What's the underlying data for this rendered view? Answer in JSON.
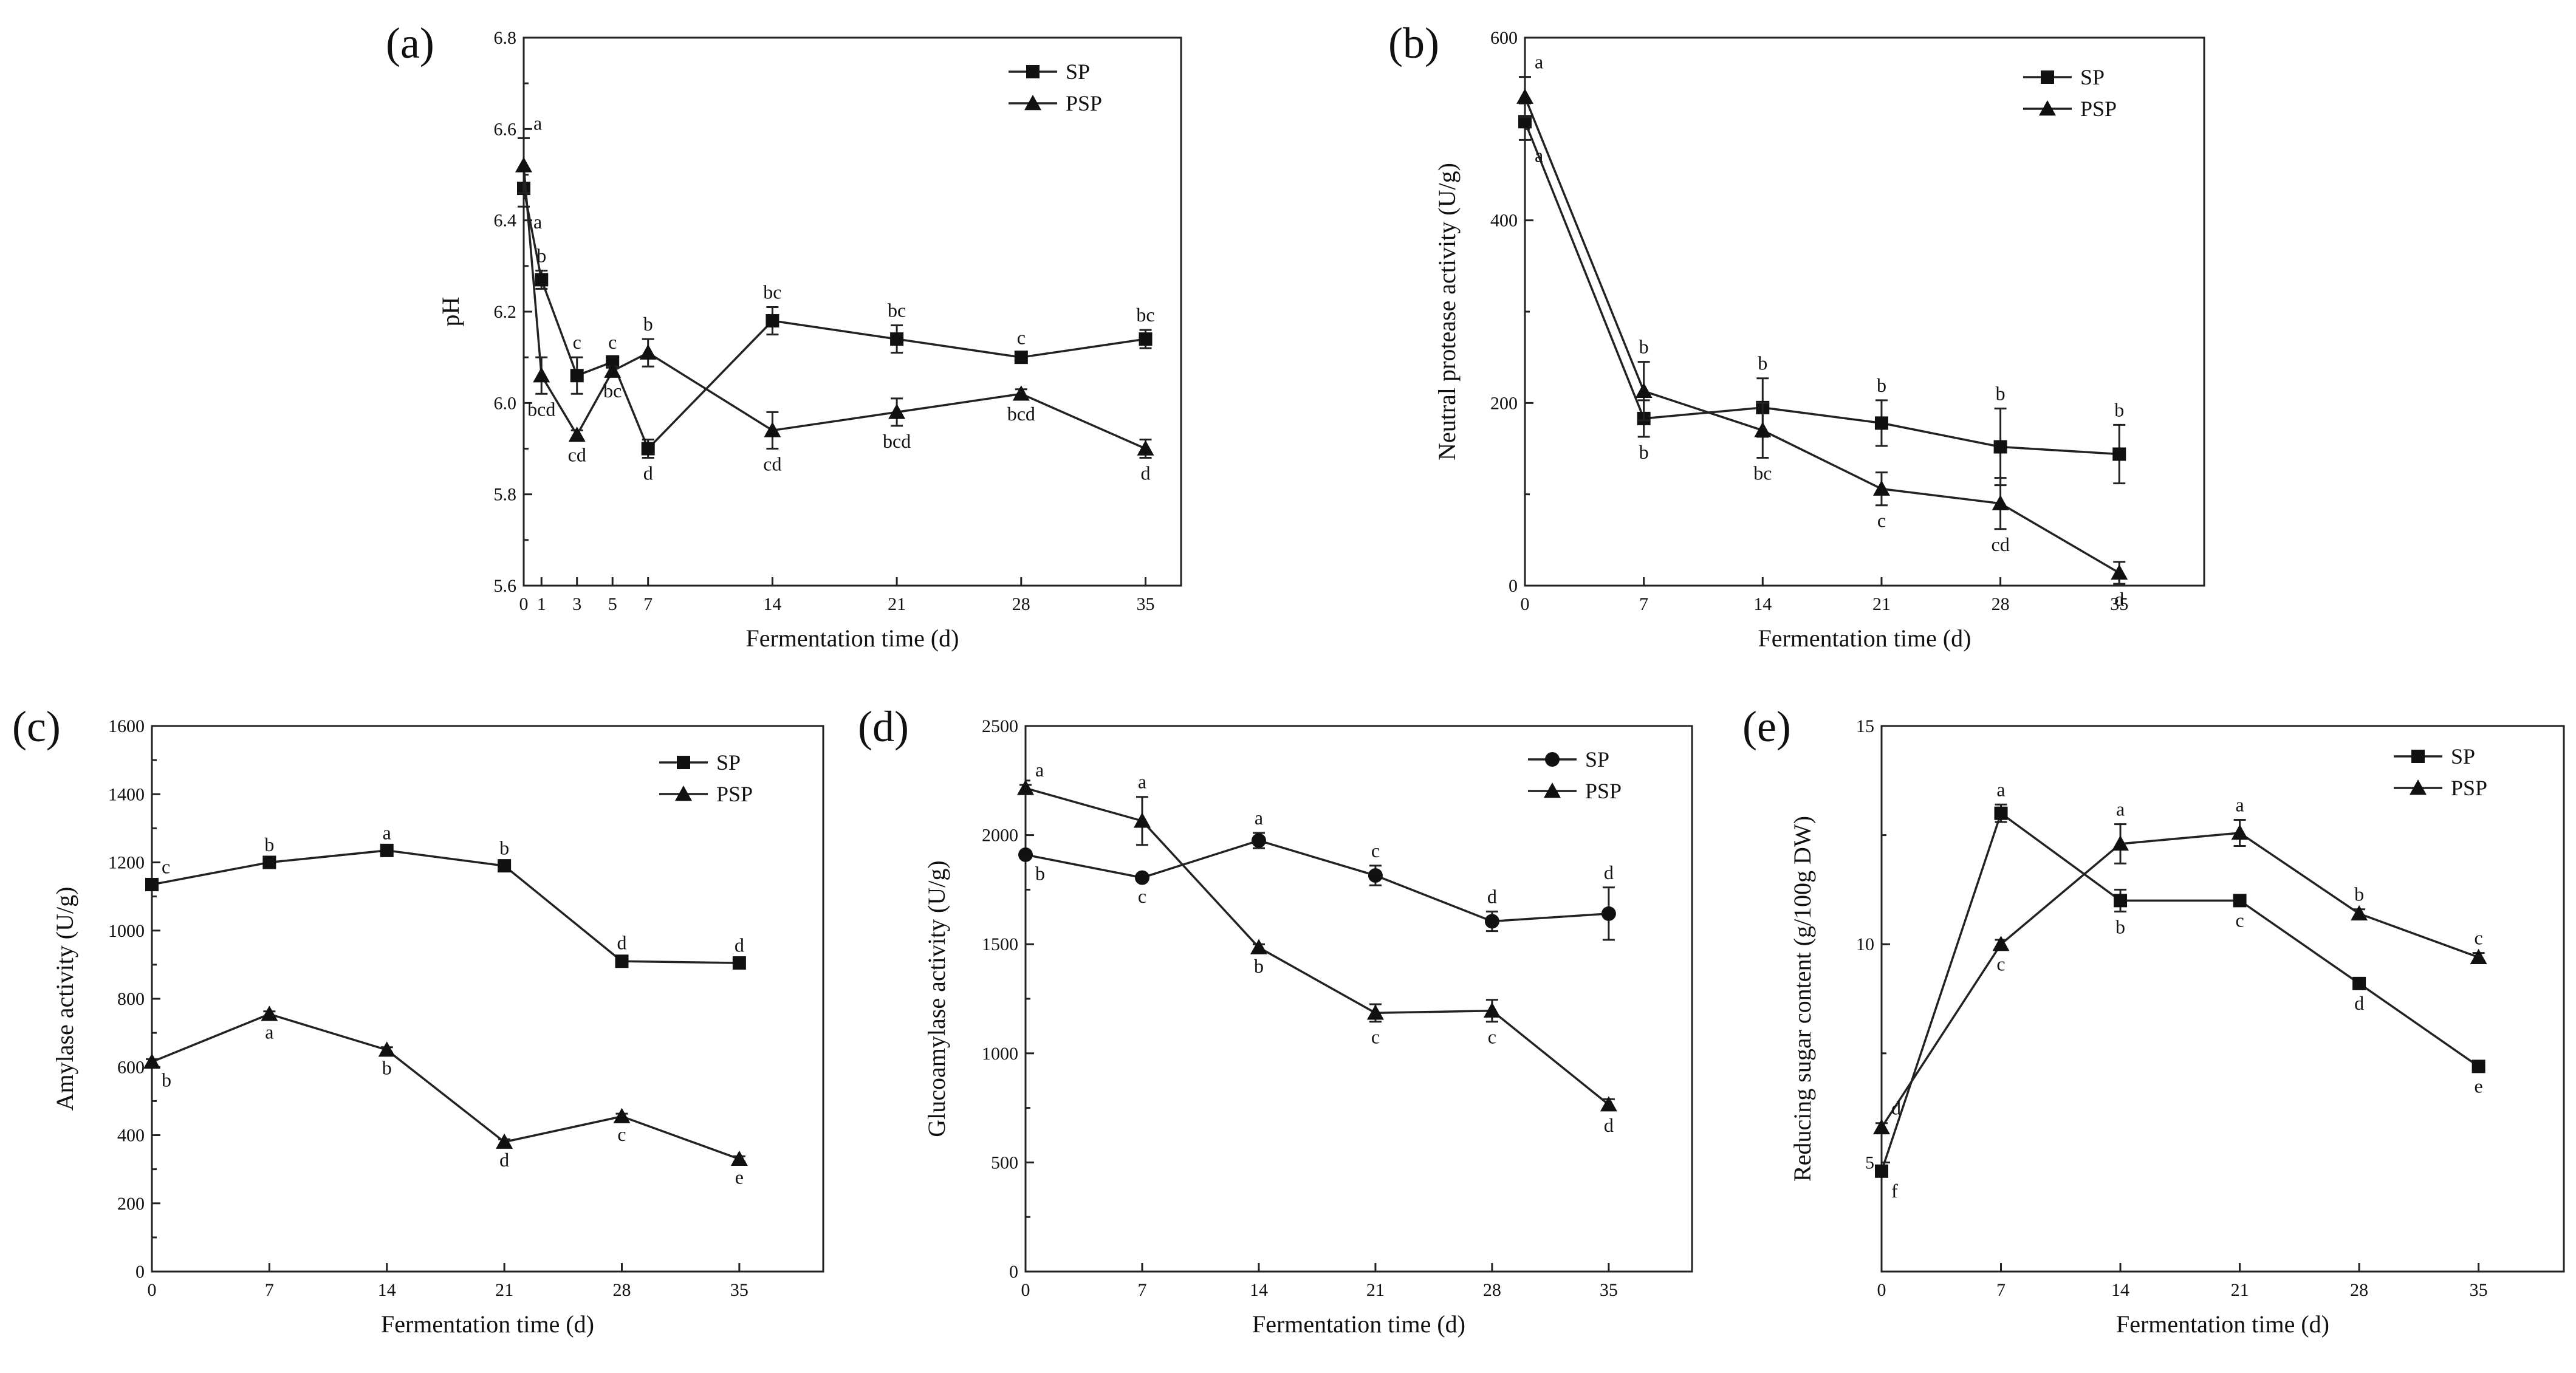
{
  "chart_data": [
    {
      "type": "line",
      "panel": "(a)",
      "xlabel": "Fermentation time (d)",
      "ylabel": "pH",
      "xlim": [
        0,
        37
      ],
      "ylim": [
        5.6,
        6.8
      ],
      "xticks": [
        0,
        1,
        3,
        5,
        7,
        14,
        21,
        28,
        35
      ],
      "yticks": [
        5.6,
        5.8,
        6.0,
        6.2,
        6.4,
        6.6,
        6.8
      ],
      "legend_position": "top-right",
      "series": [
        {
          "name": "SP",
          "marker": "square",
          "x": [
            0,
            1,
            3,
            5,
            7,
            14,
            21,
            28,
            35
          ],
          "values": [
            6.47,
            6.27,
            6.06,
            6.09,
            5.9,
            6.18,
            6.14,
            6.1,
            6.14
          ],
          "errors": [
            0.04,
            0.02,
            0.04,
            0.01,
            0.02,
            0.03,
            0.03,
            0.01,
            0.02
          ],
          "labels": [
            "a",
            "b",
            "c",
            "c",
            "d",
            "bc",
            "bc",
            "c",
            "bc"
          ]
        },
        {
          "name": "PSP",
          "marker": "triangle",
          "x": [
            0,
            1,
            3,
            5,
            7,
            14,
            21,
            28,
            35
          ],
          "values": [
            6.52,
            6.06,
            5.93,
            6.07,
            6.11,
            5.94,
            5.98,
            6.02,
            5.9
          ],
          "errors": [
            0.06,
            0.04,
            0.01,
            0.01,
            0.03,
            0.04,
            0.03,
            0.01,
            0.02
          ],
          "labels": [
            "a",
            "bcd",
            "cd",
            "bc",
            "b",
            "cd",
            "bcd",
            "bcd",
            "d"
          ]
        }
      ]
    },
    {
      "type": "line",
      "panel": "(b)",
      "xlabel": "Fermentation time (d)",
      "ylabel": "Neutral protease activity (U/g)",
      "xlim": [
        0,
        40
      ],
      "ylim": [
        0,
        600
      ],
      "xticks": [
        0,
        7,
        14,
        21,
        28,
        35
      ],
      "yticks": [
        0,
        200,
        400,
        600
      ],
      "legend_position": "top-right",
      "series": [
        {
          "name": "SP",
          "marker": "square",
          "x": [
            0,
            7,
            14,
            21,
            28,
            35
          ],
          "values": [
            508,
            183,
            195,
            178,
            152,
            144
          ],
          "errors": [
            20,
            20,
            32,
            25,
            42,
            32
          ],
          "labels": [
            "a",
            "b",
            "b",
            "b",
            "b",
            "b"
          ]
        },
        {
          "name": "PSP",
          "marker": "triangle",
          "x": [
            0,
            7,
            14,
            21,
            28,
            35
          ],
          "values": [
            535,
            213,
            170,
            106,
            90,
            14
          ],
          "errors": [
            22,
            32,
            30,
            18,
            28,
            12
          ],
          "labels": [
            "a",
            "b",
            "bc",
            "c",
            "cd",
            "d"
          ]
        }
      ]
    },
    {
      "type": "line",
      "panel": "(c)",
      "xlabel": "Fermentation time (d)",
      "ylabel": "Amylase activity (U/g)",
      "xlim": [
        0,
        40
      ],
      "ylim": [
        0,
        1600
      ],
      "xticks": [
        0,
        7,
        14,
        21,
        28,
        35
      ],
      "yticks": [
        0,
        200,
        400,
        600,
        800,
        1000,
        1200,
        1400,
        1600
      ],
      "legend_position": "top-right",
      "series": [
        {
          "name": "SP",
          "marker": "square",
          "x": [
            0,
            7,
            14,
            21,
            28,
            35
          ],
          "values": [
            1135,
            1200,
            1235,
            1190,
            910,
            905
          ],
          "errors": [
            8,
            8,
            8,
            8,
            10,
            8
          ],
          "labels": [
            "c",
            "b",
            "a",
            "b",
            "d",
            "d"
          ]
        },
        {
          "name": "PSP",
          "marker": "triangle",
          "x": [
            0,
            7,
            14,
            21,
            28,
            35
          ],
          "values": [
            615,
            755,
            650,
            380,
            455,
            330
          ],
          "errors": [
            8,
            8,
            8,
            8,
            8,
            8
          ],
          "labels": [
            "b",
            "a",
            "b",
            "d",
            "c",
            "e"
          ]
        }
      ]
    },
    {
      "type": "line",
      "panel": "(d)",
      "xlabel": "Fermentation time (d)",
      "ylabel": "Glucoamylase activity (U/g)",
      "xlim": [
        0,
        40
      ],
      "ylim": [
        0,
        2500
      ],
      "xticks": [
        0,
        7,
        14,
        21,
        28,
        35
      ],
      "yticks": [
        0,
        500,
        1000,
        1500,
        2000,
        2500
      ],
      "legend_position": "top-right",
      "series": [
        {
          "name": "SP",
          "marker": "circle",
          "x": [
            0,
            7,
            14,
            21,
            28,
            35
          ],
          "values": [
            1910,
            1805,
            1975,
            1815,
            1605,
            1640
          ],
          "errors": [
            15,
            15,
            35,
            45,
            45,
            120
          ],
          "labels": [
            "b",
            "c",
            "a",
            "c",
            "d",
            "d"
          ]
        },
        {
          "name": "PSP",
          "marker": "triangle",
          "x": [
            0,
            7,
            14,
            21,
            28,
            35
          ],
          "values": [
            2215,
            2065,
            1485,
            1185,
            1195,
            765
          ],
          "errors": [
            15,
            110,
            15,
            40,
            50,
            25
          ],
          "labels": [
            "a",
            "a",
            "b",
            "c",
            "c",
            "d"
          ]
        }
      ]
    },
    {
      "type": "line",
      "panel": "(e)",
      "xlabel": "Fermentation time (d)",
      "ylabel": "Reducing sugar content (g/100g DW)",
      "xlim": [
        0,
        40
      ],
      "ylim": [
        2.5,
        15
      ],
      "xticks": [
        0,
        7,
        14,
        21,
        28,
        35
      ],
      "yticks": [
        5,
        10,
        15
      ],
      "legend_position": "top-right",
      "series": [
        {
          "name": "SP",
          "marker": "square",
          "x": [
            0,
            7,
            14,
            21,
            28,
            35
          ],
          "values": [
            4.8,
            13.0,
            11.0,
            11.0,
            9.1,
            7.2
          ],
          "errors": [
            0.1,
            0.2,
            0.25,
            0.1,
            0.1,
            0.1
          ],
          "labels": [
            "f",
            "a",
            "b",
            "c",
            "d",
            "e"
          ]
        },
        {
          "name": "PSP",
          "marker": "triangle",
          "x": [
            0,
            7,
            14,
            21,
            28,
            35
          ],
          "values": [
            5.8,
            10.0,
            12.3,
            12.55,
            10.7,
            9.7
          ],
          "errors": [
            0.1,
            0.1,
            0.45,
            0.3,
            0.1,
            0.1
          ],
          "labels": [
            "d",
            "c",
            "a",
            "a",
            "b",
            "c"
          ]
        }
      ]
    }
  ]
}
